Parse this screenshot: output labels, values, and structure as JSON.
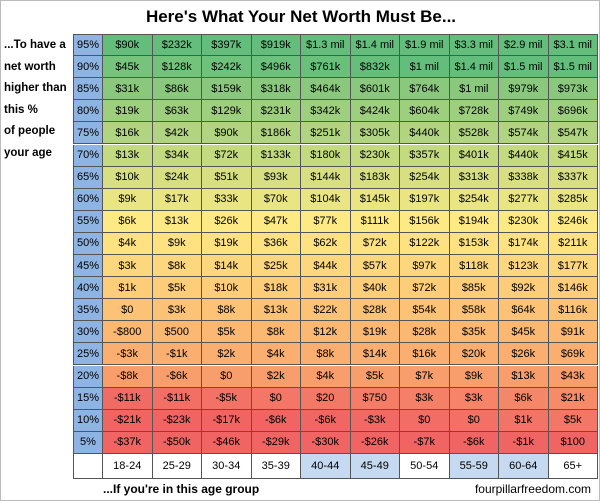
{
  "title": "Here's What Your Net Worth Must Be...",
  "side_text": [
    "...To have a",
    "net worth",
    "higher than",
    "this %",
    "of people",
    "your age"
  ],
  "footer_left": "...If you're in this age group",
  "footer_right": "fourpillarfreedom.com",
  "table": {
    "percentiles": [
      "95%",
      "90%",
      "85%",
      "80%",
      "75%",
      "70%",
      "65%",
      "60%",
      "55%",
      "50%",
      "45%",
      "40%",
      "35%",
      "30%",
      "25%",
      "20%",
      "15%",
      "10%",
      "5%"
    ],
    "age_groups": [
      "18-24",
      "25-29",
      "30-34",
      "35-39",
      "40-44",
      "45-49",
      "50-54",
      "55-59",
      "60-64",
      "65+"
    ],
    "rows": [
      [
        "$90k",
        "$232k",
        "$397k",
        "$919k",
        "$1.3 mil",
        "$1.4 mil",
        "$1.9 mil",
        "$3.3 mil",
        "$2.9 mil",
        "$3.1 mil"
      ],
      [
        "$45k",
        "$128k",
        "$242k",
        "$496k",
        "$761k",
        "$832k",
        "$1 mil",
        "$1.4 mil",
        "$1.5 mil",
        "$1.5 mil"
      ],
      [
        "$31k",
        "$86k",
        "$159k",
        "$318k",
        "$464k",
        "$601k",
        "$764k",
        "$1 mil",
        "$979k",
        "$973k"
      ],
      [
        "$19k",
        "$63k",
        "$129k",
        "$231k",
        "$342k",
        "$424k",
        "$604k",
        "$728k",
        "$749k",
        "$696k"
      ],
      [
        "$16k",
        "$42k",
        "$90k",
        "$186k",
        "$251k",
        "$305k",
        "$440k",
        "$528k",
        "$574k",
        "$547k"
      ],
      [
        "$13k",
        "$34k",
        "$72k",
        "$133k",
        "$180k",
        "$230k",
        "$357k",
        "$401k",
        "$440k",
        "$415k"
      ],
      [
        "$10k",
        "$24k",
        "$51k",
        "$93k",
        "$144k",
        "$183k",
        "$254k",
        "$313k",
        "$338k",
        "$337k"
      ],
      [
        "$9k",
        "$17k",
        "$33k",
        "$70k",
        "$104k",
        "$145k",
        "$197k",
        "$254k",
        "$277k",
        "$285k"
      ],
      [
        "$6k",
        "$13k",
        "$26k",
        "$47k",
        "$77k",
        "$111k",
        "$156k",
        "$194k",
        "$230k",
        "$246k"
      ],
      [
        "$4k",
        "$9k",
        "$19k",
        "$36k",
        "$62k",
        "$72k",
        "$122k",
        "$153k",
        "$174k",
        "$211k"
      ],
      [
        "$3k",
        "$8k",
        "$14k",
        "$25k",
        "$44k",
        "$57k",
        "$97k",
        "$118k",
        "$123k",
        "$177k"
      ],
      [
        "$1k",
        "$5k",
        "$10k",
        "$18k",
        "$31k",
        "$40k",
        "$72k",
        "$85k",
        "$92k",
        "$146k"
      ],
      [
        "$0",
        "$3k",
        "$8k",
        "$13k",
        "$22k",
        "$28k",
        "$54k",
        "$58k",
        "$64k",
        "$116k"
      ],
      [
        "-$800",
        "$500",
        "$5k",
        "$8k",
        "$12k",
        "$19k",
        "$28k",
        "$35k",
        "$45k",
        "$91k"
      ],
      [
        "-$3k",
        "-$1k",
        "$2k",
        "$4k",
        "$8k",
        "$14k",
        "$16k",
        "$20k",
        "$26k",
        "$69k"
      ],
      [
        "-$8k",
        "-$6k",
        "$0",
        "$2k",
        "$4k",
        "$5k",
        "$7k",
        "$9k",
        "$13k",
        "$43k"
      ],
      [
        "-$11k",
        "-$11k",
        "-$5k",
        "$0",
        "$20",
        "$750",
        "$3k",
        "$3k",
        "$6k",
        "$21k"
      ],
      [
        "-$21k",
        "-$23k",
        "-$17k",
        "-$6k",
        "-$6k",
        "-$3k",
        "$0",
        "$0",
        "$1k",
        "$5k"
      ],
      [
        "-$37k",
        "-$50k",
        "-$46k",
        "-$29k",
        "-$30k",
        "-$26k",
        "-$7k",
        "-$6k",
        "-$1k",
        "$100"
      ]
    ]
  }
}
